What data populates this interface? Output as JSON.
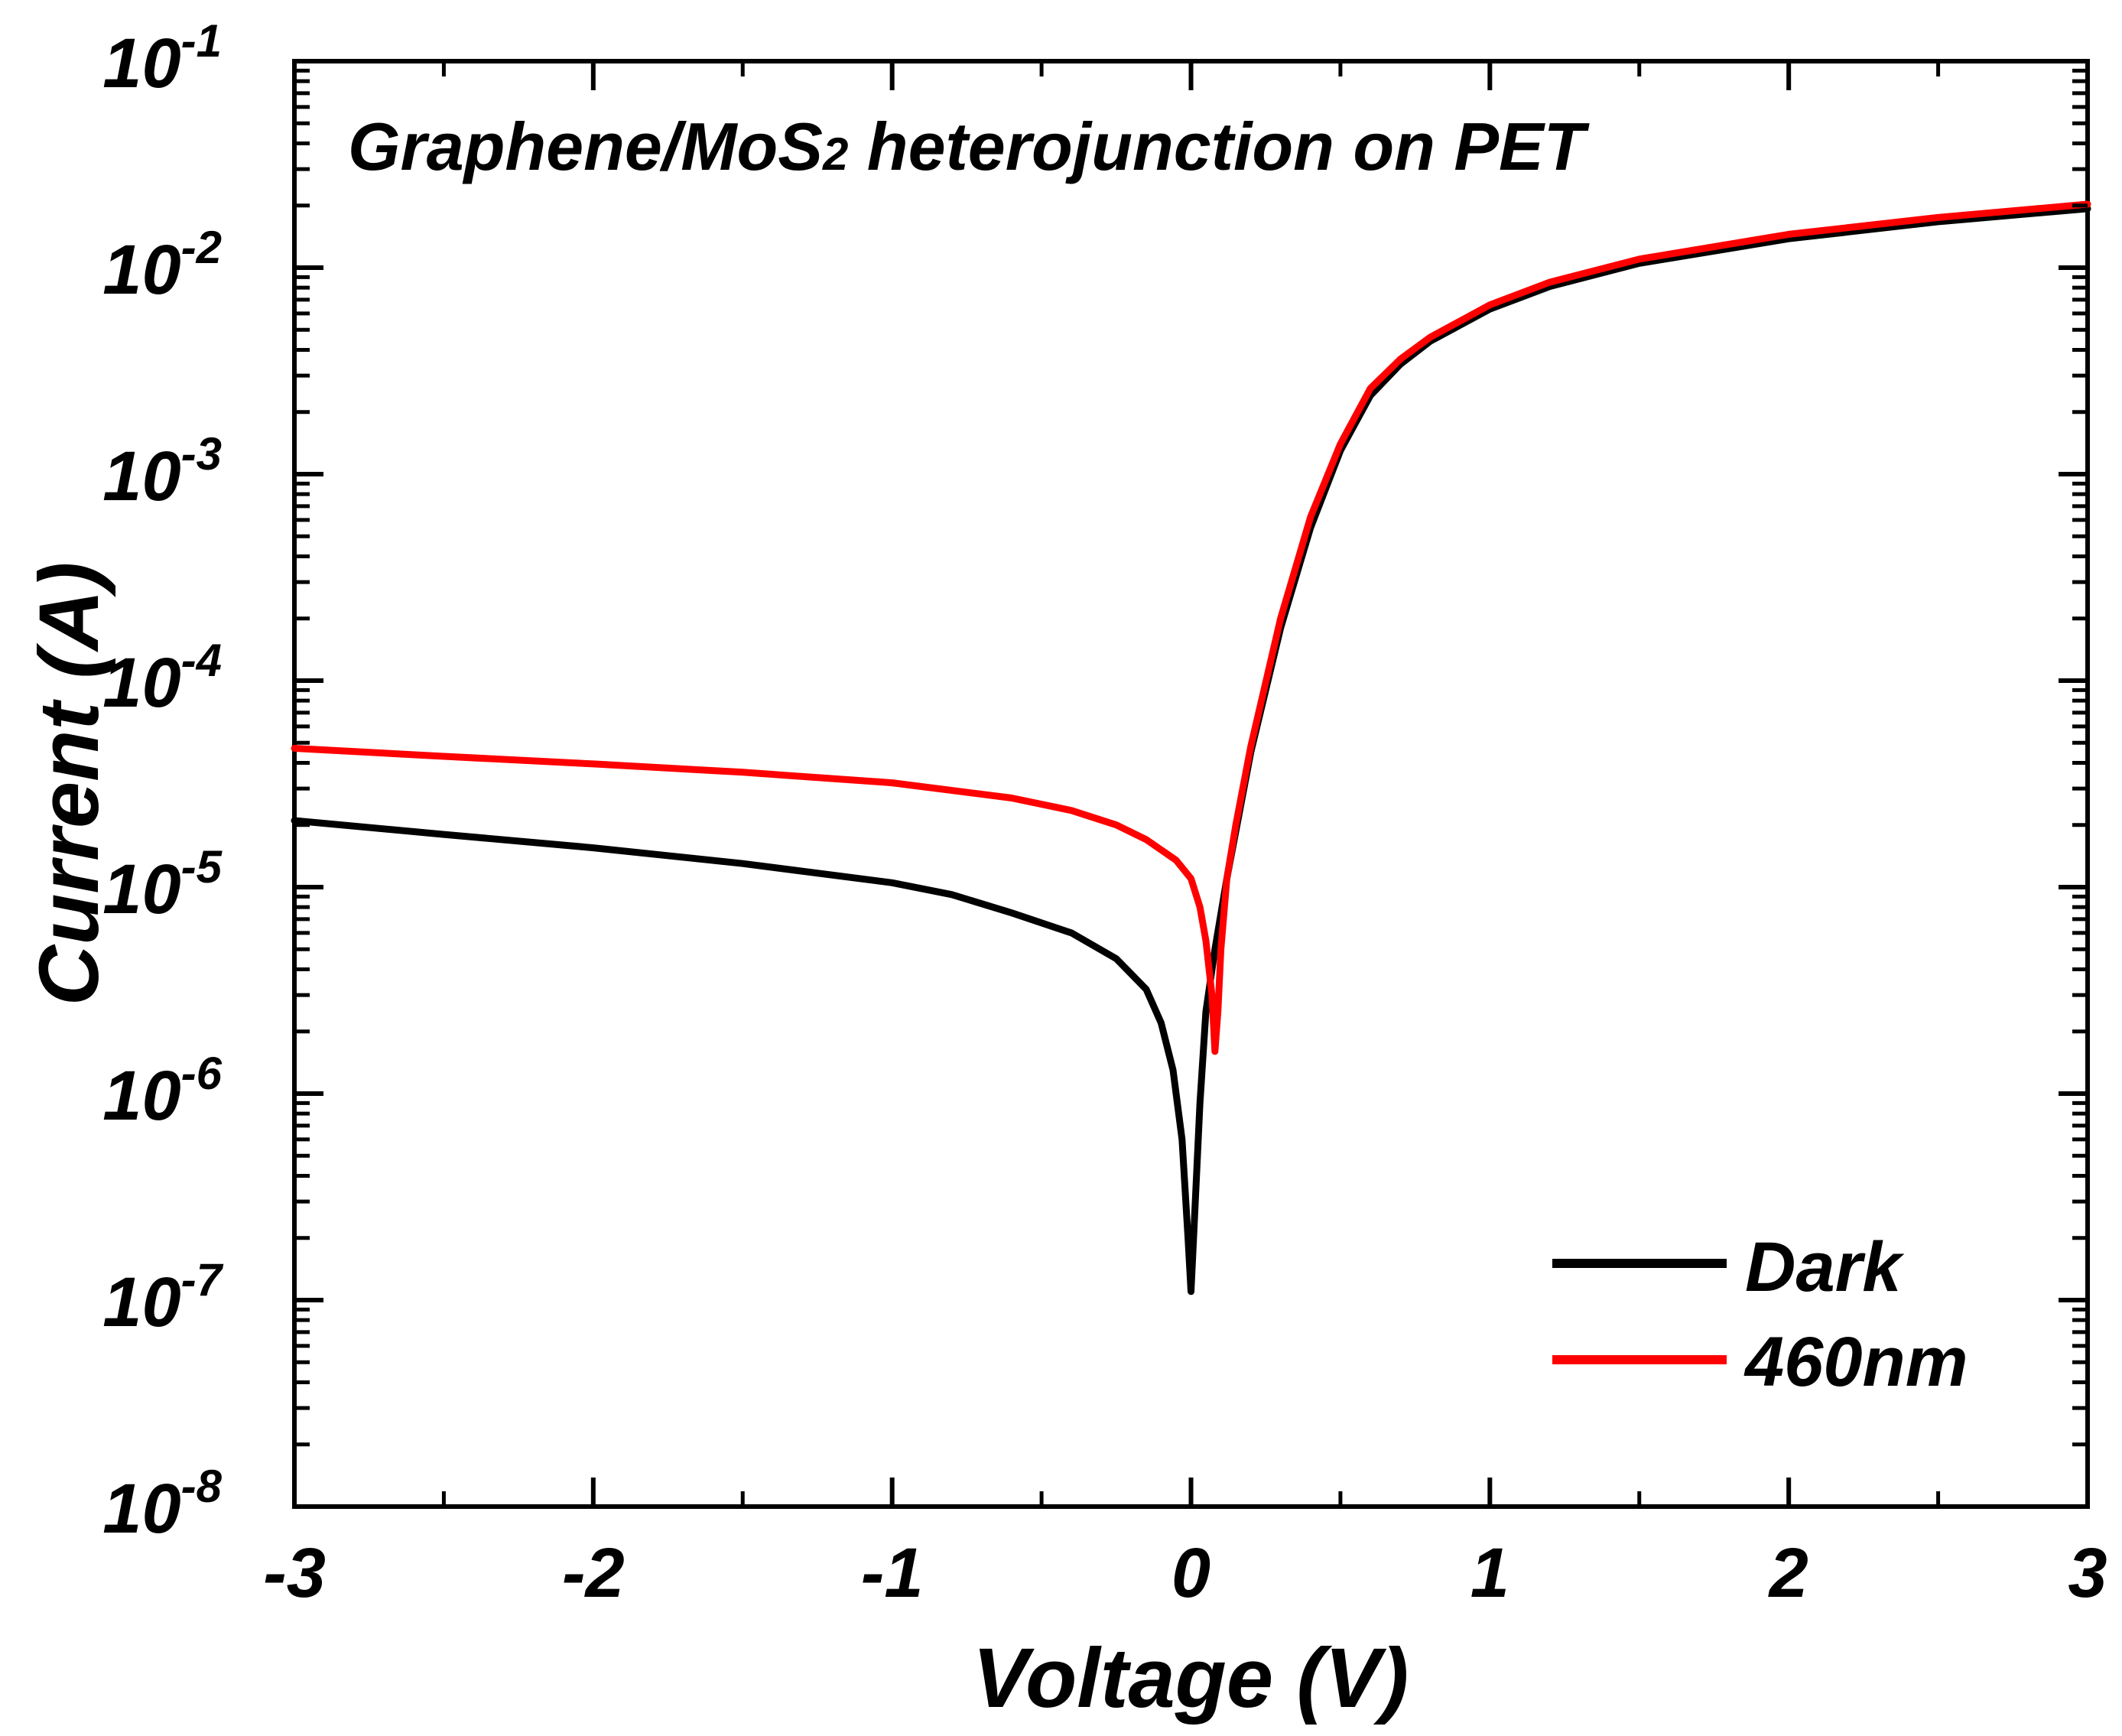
{
  "chart_data": {
    "type": "line",
    "title_parts": {
      "before": "Graphene/MoS",
      "subscript": "2",
      "after": " heterojunction on PET"
    },
    "xlabel": "Voltage (V)",
    "ylabel": "Current (A)",
    "xlim": [
      -3,
      3
    ],
    "ylim_log10": [
      -8,
      -1
    ],
    "yscale": "log",
    "x_ticks": [
      {
        "value": -3,
        "label": "-3"
      },
      {
        "value": -2,
        "label": "-2"
      },
      {
        "value": -1,
        "label": "-1"
      },
      {
        "value": 0,
        "label": "0"
      },
      {
        "value": 1,
        "label": "1"
      },
      {
        "value": 2,
        "label": "2"
      },
      {
        "value": 3,
        "label": "3"
      }
    ],
    "y_ticks": [
      {
        "exp": -1,
        "base": "10",
        "sup": "-1"
      },
      {
        "exp": -2,
        "base": "10",
        "sup": "-2"
      },
      {
        "exp": -3,
        "base": "10",
        "sup": "-3"
      },
      {
        "exp": -4,
        "base": "10",
        "sup": "-4"
      },
      {
        "exp": -5,
        "base": "10",
        "sup": "-5"
      },
      {
        "exp": -6,
        "base": "10",
        "sup": "-6"
      },
      {
        "exp": -7,
        "base": "10",
        "sup": "-7"
      },
      {
        "exp": -8,
        "base": "10",
        "sup": "-8"
      }
    ],
    "legend": {
      "position": "bottom-right",
      "entries": [
        "Dark",
        "460nm"
      ]
    },
    "series": [
      {
        "name": "Dark",
        "color": "#000000",
        "points": [
          [
            -3.0,
            2.1e-05
          ],
          [
            -2.5,
            1.8e-05
          ],
          [
            -2.0,
            1.55e-05
          ],
          [
            -1.5,
            1.3e-05
          ],
          [
            -1.0,
            1.05e-05
          ],
          [
            -0.8,
            9.2e-06
          ],
          [
            -0.6,
            7.5e-06
          ],
          [
            -0.4,
            6e-06
          ],
          [
            -0.25,
            4.5e-06
          ],
          [
            -0.15,
            3.2e-06
          ],
          [
            -0.1,
            2.2e-06
          ],
          [
            -0.06,
            1.3e-06
          ],
          [
            -0.03,
            6e-07
          ],
          [
            -0.01,
            2e-07
          ],
          [
            0.0,
            1.1e-07
          ],
          [
            0.01,
            2.2e-07
          ],
          [
            0.03,
            9e-07
          ],
          [
            0.05,
            2.5e-06
          ],
          [
            0.08,
            5e-06
          ],
          [
            0.12,
            1.1e-05
          ],
          [
            0.2,
            4.5e-05
          ],
          [
            0.3,
            0.00018
          ],
          [
            0.4,
            0.00055
          ],
          [
            0.5,
            0.0013
          ],
          [
            0.6,
            0.0024
          ],
          [
            0.7,
            0.0034
          ],
          [
            0.8,
            0.0044
          ],
          [
            1.0,
            0.0063
          ],
          [
            1.2,
            0.0081
          ],
          [
            1.5,
            0.0105
          ],
          [
            2.0,
            0.0138
          ],
          [
            2.5,
            0.0167
          ],
          [
            3.0,
            0.0193
          ]
        ]
      },
      {
        "name": "460nm",
        "color": "#ff0000",
        "points": [
          [
            -3.0,
            4.7e-05
          ],
          [
            -2.5,
            4.3e-05
          ],
          [
            -2.0,
            3.95e-05
          ],
          [
            -1.5,
            3.6e-05
          ],
          [
            -1.0,
            3.2e-05
          ],
          [
            -0.6,
            2.7e-05
          ],
          [
            -0.4,
            2.35e-05
          ],
          [
            -0.25,
            2e-05
          ],
          [
            -0.15,
            1.7e-05
          ],
          [
            -0.05,
            1.35e-05
          ],
          [
            0.0,
            1.1e-05
          ],
          [
            0.03,
            8e-06
          ],
          [
            0.05,
            5.5e-06
          ],
          [
            0.07,
            3e-06
          ],
          [
            0.08,
            1.6e-06
          ],
          [
            0.09,
            2.5e-06
          ],
          [
            0.1,
            5e-06
          ],
          [
            0.12,
            1.1e-05
          ],
          [
            0.15,
            2e-05
          ],
          [
            0.2,
            4.8e-05
          ],
          [
            0.3,
            0.0002
          ],
          [
            0.4,
            0.00062
          ],
          [
            0.5,
            0.0014
          ],
          [
            0.6,
            0.0026
          ],
          [
            0.7,
            0.0036
          ],
          [
            0.8,
            0.0046
          ],
          [
            1.0,
            0.0066
          ],
          [
            1.2,
            0.0085
          ],
          [
            1.5,
            0.011
          ],
          [
            2.0,
            0.0145
          ],
          [
            2.5,
            0.0175
          ],
          [
            3.0,
            0.0203
          ]
        ]
      }
    ]
  }
}
